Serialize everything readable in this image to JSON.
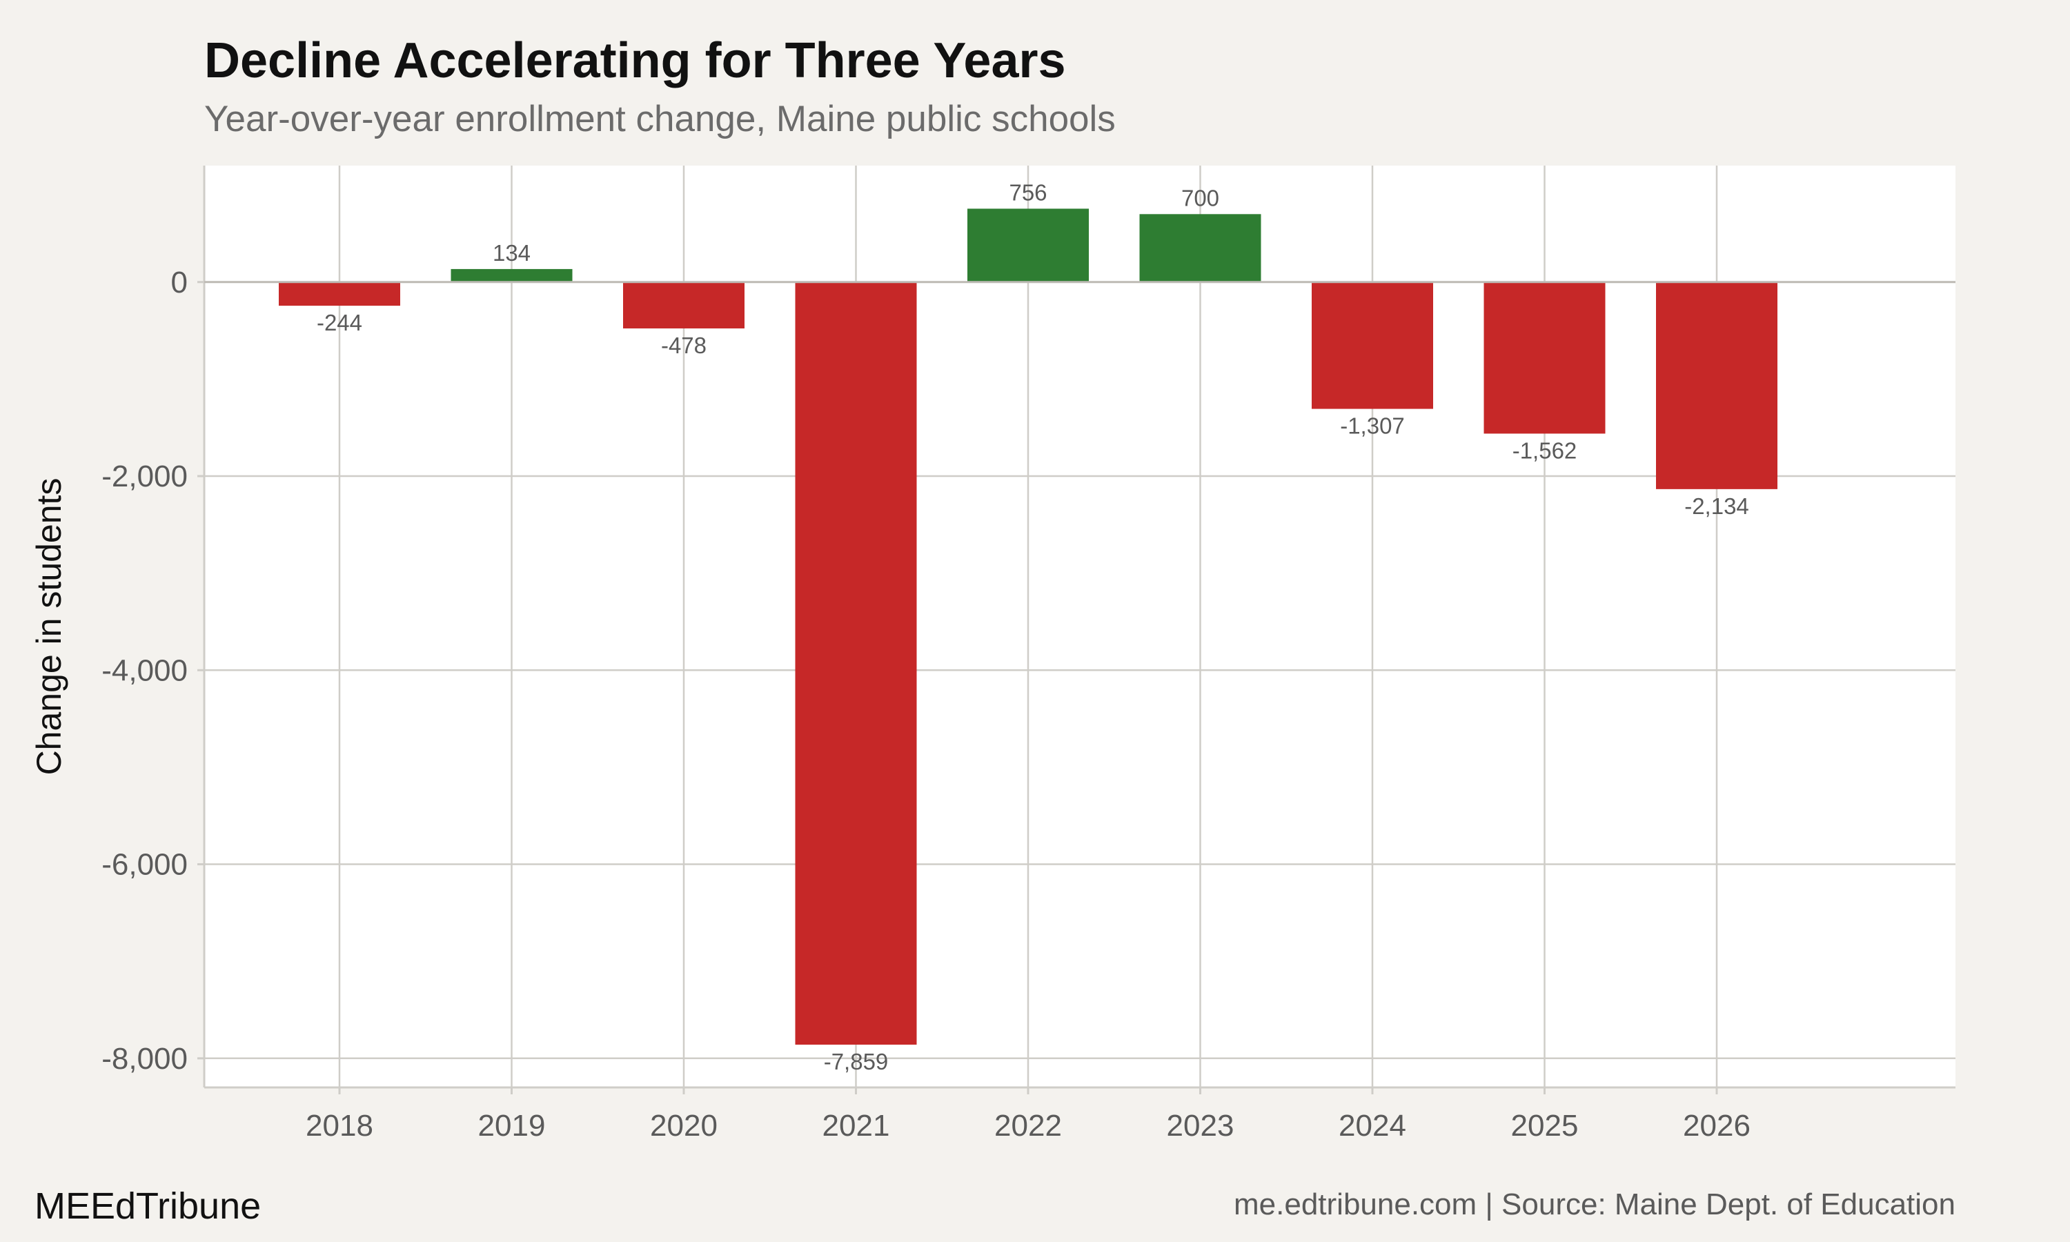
{
  "colors": {
    "negative": "#c62828",
    "positive": "#2e7d32",
    "panel": "#ffffff",
    "background": "#f4f2ee",
    "grid": "#cfcdc8"
  },
  "footer": {
    "brand": "MEEdTribune",
    "source": "me.edtribune.com | Source: Maine Dept. of Education"
  },
  "chart_data": {
    "type": "bar",
    "title": "Decline Accelerating for Three Years",
    "subtitle": "Year-over-year enrollment change, Maine public schools",
    "xlabel": "",
    "ylabel": "Change in students",
    "categories": [
      "2018",
      "2019",
      "2020",
      "2021",
      "2022",
      "2023",
      "2024",
      "2025",
      "2026"
    ],
    "values": [
      -244,
      134,
      -478,
      -7859,
      756,
      700,
      -1307,
      -1562,
      -2134
    ],
    "value_labels": [
      "-244",
      "134",
      "-478",
      "-7,859",
      "756",
      "700",
      "-1,307",
      "-1,562",
      "-2,134"
    ],
    "y_ticks": [
      0,
      -2000,
      -4000,
      -6000,
      -8000
    ],
    "y_tick_labels": [
      "0",
      "-2,000",
      "-4,000",
      "-6,000",
      "-8,000"
    ],
    "ylim": [
      -8300,
      1200
    ],
    "grid": true,
    "legend": "none"
  }
}
